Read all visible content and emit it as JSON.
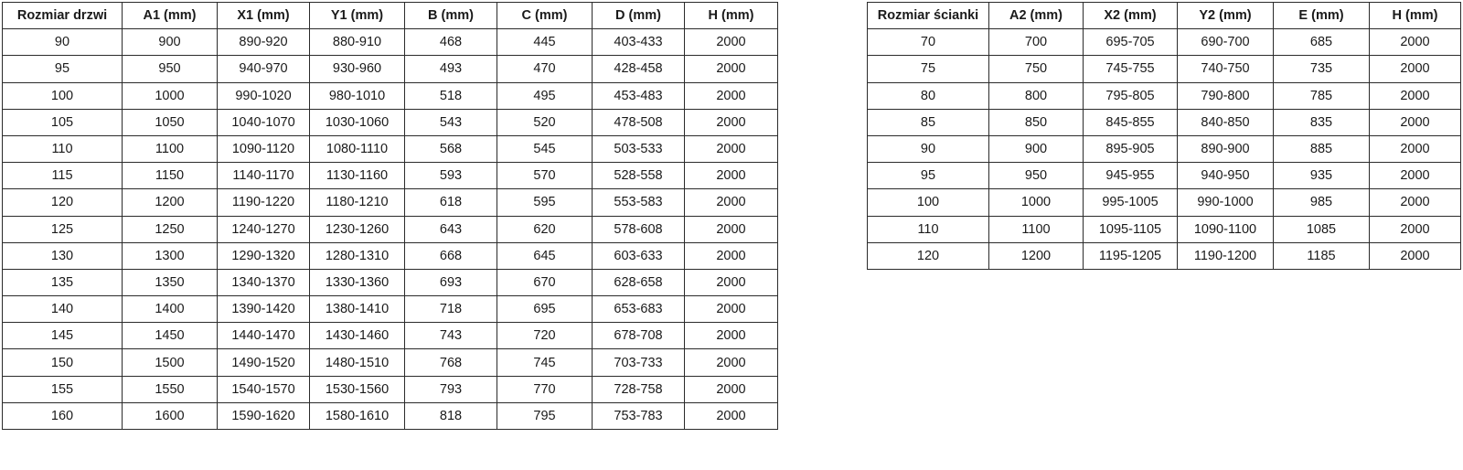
{
  "door_table": {
    "name": "door-size-table",
    "headers": [
      "Rozmiar drzwi",
      "A1 (mm)",
      "X1 (mm)",
      "Y1 (mm)",
      "B (mm)",
      "C (mm)",
      "D (mm)",
      "H (mm)"
    ],
    "rows": [
      [
        "90",
        "900",
        "890-920",
        "880-910",
        "468",
        "445",
        "403-433",
        "2000"
      ],
      [
        "95",
        "950",
        "940-970",
        "930-960",
        "493",
        "470",
        "428-458",
        "2000"
      ],
      [
        "100",
        "1000",
        "990-1020",
        "980-1010",
        "518",
        "495",
        "453-483",
        "2000"
      ],
      [
        "105",
        "1050",
        "1040-1070",
        "1030-1060",
        "543",
        "520",
        "478-508",
        "2000"
      ],
      [
        "110",
        "1100",
        "1090-1120",
        "1080-1110",
        "568",
        "545",
        "503-533",
        "2000"
      ],
      [
        "115",
        "1150",
        "1140-1170",
        "1130-1160",
        "593",
        "570",
        "528-558",
        "2000"
      ],
      [
        "120",
        "1200",
        "1190-1220",
        "1180-1210",
        "618",
        "595",
        "553-583",
        "2000"
      ],
      [
        "125",
        "1250",
        "1240-1270",
        "1230-1260",
        "643",
        "620",
        "578-608",
        "2000"
      ],
      [
        "130",
        "1300",
        "1290-1320",
        "1280-1310",
        "668",
        "645",
        "603-633",
        "2000"
      ],
      [
        "135",
        "1350",
        "1340-1370",
        "1330-1360",
        "693",
        "670",
        "628-658",
        "2000"
      ],
      [
        "140",
        "1400",
        "1390-1420",
        "1380-1410",
        "718",
        "695",
        "653-683",
        "2000"
      ],
      [
        "145",
        "1450",
        "1440-1470",
        "1430-1460",
        "743",
        "720",
        "678-708",
        "2000"
      ],
      [
        "150",
        "1500",
        "1490-1520",
        "1480-1510",
        "768",
        "745",
        "703-733",
        "2000"
      ],
      [
        "155",
        "1550",
        "1540-1570",
        "1530-1560",
        "793",
        "770",
        "728-758",
        "2000"
      ],
      [
        "160",
        "1600",
        "1590-1620",
        "1580-1610",
        "818",
        "795",
        "753-783",
        "2000"
      ]
    ]
  },
  "wall_table": {
    "name": "wall-panel-size-table",
    "headers": [
      "Rozmiar ścianki",
      "A2 (mm)",
      "X2 (mm)",
      "Y2 (mm)",
      "E (mm)",
      "H (mm)"
    ],
    "rows": [
      [
        "70",
        "700",
        "695-705",
        "690-700",
        "685",
        "2000"
      ],
      [
        "75",
        "750",
        "745-755",
        "740-750",
        "735",
        "2000"
      ],
      [
        "80",
        "800",
        "795-805",
        "790-800",
        "785",
        "2000"
      ],
      [
        "85",
        "850",
        "845-855",
        "840-850",
        "835",
        "2000"
      ],
      [
        "90",
        "900",
        "895-905",
        "890-900",
        "885",
        "2000"
      ],
      [
        "95",
        "950",
        "945-955",
        "940-950",
        "935",
        "2000"
      ],
      [
        "100",
        "1000",
        "995-1005",
        "990-1000",
        "985",
        "2000"
      ],
      [
        "110",
        "1100",
        "1095-1105",
        "1090-1100",
        "1085",
        "2000"
      ],
      [
        "120",
        "1200",
        "1195-1205",
        "1190-1200",
        "1185",
        "2000"
      ]
    ]
  },
  "colors": {
    "border": "#2b2b2b",
    "text": "#1a1a1a",
    "background": "#ffffff"
  }
}
